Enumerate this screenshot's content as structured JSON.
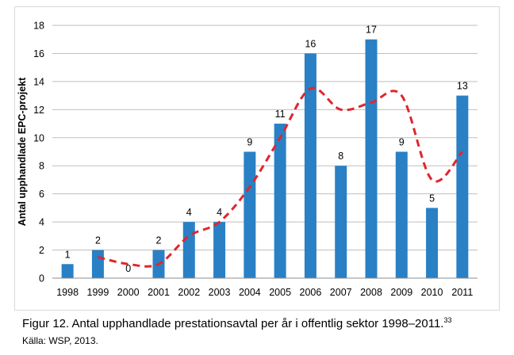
{
  "chart_data": {
    "type": "bar",
    "categories": [
      "1998",
      "1999",
      "2000",
      "2001",
      "2002",
      "2003",
      "2004",
      "2005",
      "2006",
      "2007",
      "2008",
      "2009",
      "2010",
      "2011"
    ],
    "values": [
      1,
      2,
      0,
      2,
      4,
      4,
      9,
      11,
      16,
      8,
      17,
      9,
      5,
      13
    ],
    "data_labels": [
      "1",
      "2",
      "0",
      "2",
      "4",
      "4",
      "9",
      "11",
      "16",
      "8",
      "17",
      "9",
      "5",
      "13"
    ],
    "trend": {
      "style": "dashed",
      "color": "#e0262d",
      "x": [
        "1999",
        "2000",
        "2001",
        "2002",
        "2003",
        "2004",
        "2005",
        "2006",
        "2007",
        "2008",
        "2009",
        "2010",
        "2011"
      ],
      "values": [
        1.5,
        1.0,
        1.0,
        3.0,
        4.0,
        6.5,
        10.0,
        13.5,
        12.0,
        12.5,
        13.0,
        7.0,
        9.0
      ]
    },
    "ylabel": "Antal upphandlade EPC-projekt",
    "xlabel": "",
    "ylim": [
      0,
      18
    ],
    "yticks": [
      "0",
      "2",
      "4",
      "6",
      "8",
      "10",
      "12",
      "14",
      "16",
      "18"
    ],
    "grid": true,
    "bar_color": "#2a80c4",
    "grid_color": "#bfbfbf"
  },
  "caption": {
    "text": "Figur 12.  Antal upphandlade prestationsavtal per år i offentlig sektor 1998–2011.",
    "footnote": "33"
  },
  "source": "Källa: WSP, 2013."
}
